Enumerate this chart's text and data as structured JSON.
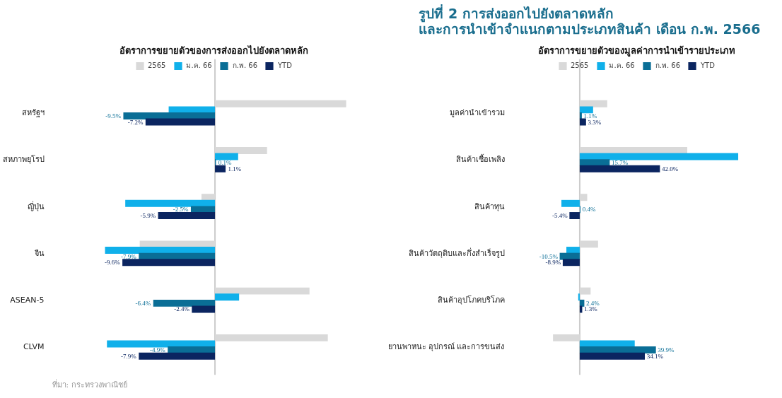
{
  "chart_data": [
    {
      "type": "bar",
      "orientation": "horizontal",
      "title": "อัตราการขยายตัวของการส่งออกไปยังตลาดหลัก",
      "annotations": [
        "ที่มา: กระทรวงพาณิชย์"
      ],
      "legend": "top",
      "categories": [
        "สหรัฐฯ",
        "สหภาพยุโรป",
        "ญี่ปุ่น",
        "จีน",
        "ASEAN-5",
        "CLVM"
      ],
      "series": [
        {
          "name": "2565",
          "color": "#d9d9d9",
          "values": [
            13.6,
            5.4,
            -1.4,
            -7.8,
            9.8,
            11.7
          ]
        },
        {
          "name": "ม.ค. 66",
          "color": "#10b0ea",
          "values": [
            -4.8,
            2.4,
            -9.3,
            -11.4,
            2.5,
            -11.2
          ]
        },
        {
          "name": "ก.พ. 66",
          "color": "#0a6e96",
          "values": [
            -9.5,
            0.1,
            -2.5,
            -7.9,
            -6.4,
            -4.9
          ],
          "value_labels": [
            "-9.5%",
            "0.1%",
            "-2.5%",
            "-7.9%",
            "-6.4%",
            "-4.9%"
          ]
        },
        {
          "name": "YTD",
          "color": "#0b2560",
          "values": [
            -7.2,
            1.1,
            -5.9,
            -9.6,
            -2.4,
            -7.9
          ],
          "value_labels": [
            "-7.2%",
            "1.1%",
            "-5.9%",
            "-9.6%",
            "-2.4%",
            "-7.9%"
          ]
        }
      ]
    },
    {
      "type": "bar",
      "orientation": "horizontal",
      "title": "รูปที่ 2  การส่งออกไปยังตลาดหลัก\nและการนำเข้าจำแนกตามประเภทสินค้า เดือน ก.พ. 2566",
      "subtitle": "อัตราการขยายตัวของมูลค่าการนำเข้ารายประเภท",
      "legend": "top",
      "categories": [
        "มูลค่านำเข้ารวม",
        "สินค้าเชื้อเพลิง",
        "สินค้าทุน",
        "สินค้าวัตถุดิบและกึ่งสำเร็จรูป",
        "สินค้าอุปโภคบริโภค",
        "ยานพาหนะ อุปกรณ์ และการขนส่ง"
      ],
      "series": [
        {
          "name": "2565",
          "color": "#d9d9d9",
          "values": [
            14.4,
            56.3,
            3.9,
            9.6,
            5.7,
            -14.0
          ]
        },
        {
          "name": "ม.ค. 66",
          "color": "#10b0ea",
          "values": [
            7.0,
            83.0,
            -9.6,
            -7.0,
            -0.8,
            28.8
          ]
        },
        {
          "name": "ก.พ. 66",
          "color": "#0a6e96",
          "values": [
            1.1,
            15.7,
            0.4,
            -10.5,
            2.4,
            39.9
          ],
          "value_labels": [
            "1.1%",
            "15.7%",
            "0.4%",
            "-10.5%",
            "2.4%",
            "39.9%"
          ]
        },
        {
          "name": "YTD",
          "color": "#0b2560",
          "values": [
            3.3,
            42.0,
            -5.4,
            -8.9,
            1.3,
            34.1
          ],
          "value_labels": [
            "3.3%",
            "42.0%",
            "-5.4%",
            "-8.9%",
            "1.3%",
            "34.1%"
          ]
        }
      ]
    }
  ]
}
